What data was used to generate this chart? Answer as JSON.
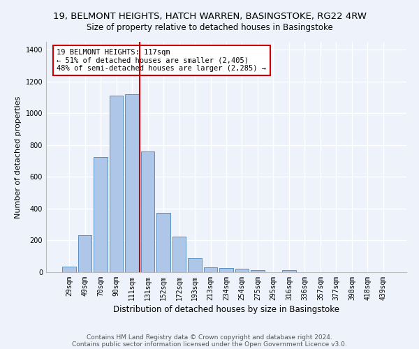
{
  "title": "19, BELMONT HEIGHTS, HATCH WARREN, BASINGSTOKE, RG22 4RW",
  "subtitle": "Size of property relative to detached houses in Basingstoke",
  "xlabel": "Distribution of detached houses by size in Basingstoke",
  "ylabel": "Number of detached properties",
  "footnote1": "Contains HM Land Registry data © Crown copyright and database right 2024.",
  "footnote2": "Contains public sector information licensed under the Open Government Licence v3.0.",
  "categories": [
    "29sqm",
    "49sqm",
    "70sqm",
    "90sqm",
    "111sqm",
    "131sqm",
    "152sqm",
    "172sqm",
    "193sqm",
    "213sqm",
    "234sqm",
    "254sqm",
    "275sqm",
    "295sqm",
    "316sqm",
    "336sqm",
    "357sqm",
    "377sqm",
    "398sqm",
    "418sqm",
    "439sqm"
  ],
  "bar_values": [
    35,
    235,
    725,
    1110,
    1120,
    760,
    375,
    225,
    90,
    32,
    25,
    20,
    15,
    0,
    12,
    0,
    0,
    0,
    0,
    0,
    0
  ],
  "bar_color": "#aec6e8",
  "bar_edge_color": "#5a8fc0",
  "background_color": "#eef2fa",
  "grid_color": "#ffffff",
  "vline_color": "#cc0000",
  "annotation_text": "19 BELMONT HEIGHTS: 117sqm\n← 51% of detached houses are smaller (2,405)\n48% of semi-detached houses are larger (2,285) →",
  "annotation_box_color": "#ffffff",
  "annotation_box_edge_color": "#cc0000",
  "ylim": [
    0,
    1450
  ],
  "yticks": [
    0,
    200,
    400,
    600,
    800,
    1000,
    1200,
    1400
  ],
  "title_fontsize": 9.5,
  "subtitle_fontsize": 8.5,
  "annotation_fontsize": 7.5,
  "xlabel_fontsize": 8.5,
  "ylabel_fontsize": 8,
  "tick_fontsize": 7,
  "footnote_fontsize": 6.5
}
